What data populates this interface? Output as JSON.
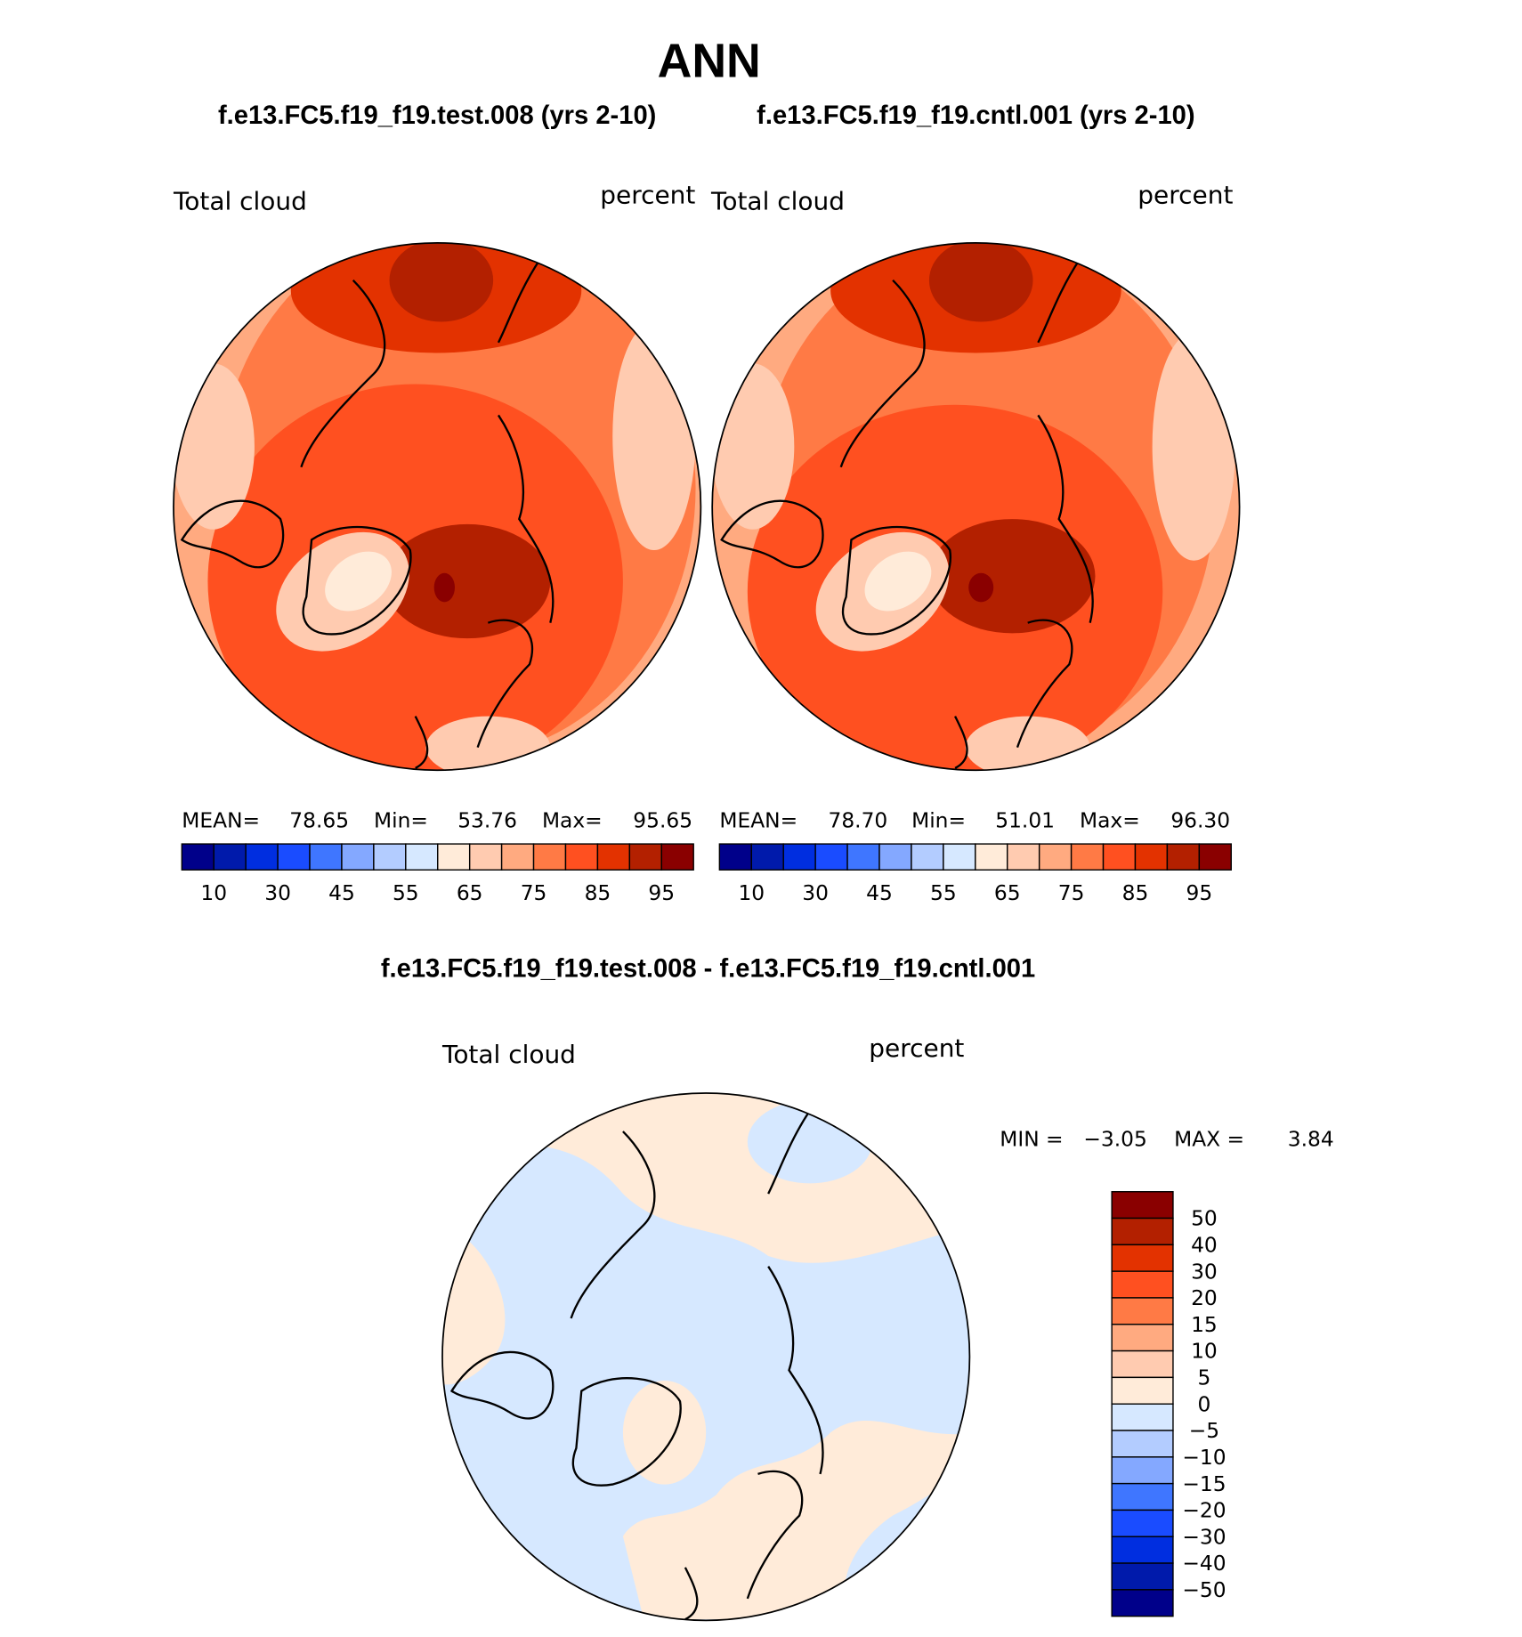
{
  "title": "ANN",
  "panels": [
    {
      "case_title": "f.e13.FC5.f19_f19.test.008 (yrs 2-10)",
      "left_label": "Total cloud",
      "right_label": "percent",
      "stats": {
        "mean_label": "MEAN=",
        "mean": "78.65",
        "min_label": "Min=",
        "min": "53.76",
        "max_label": "Max=",
        "max": "95.65"
      }
    },
    {
      "case_title": "f.e13.FC5.f19_f19.cntl.001 (yrs 2-10)",
      "left_label": "Total cloud",
      "right_label": "percent",
      "stats": {
        "mean_label": "MEAN=",
        "mean": "78.70",
        "min_label": "Min=",
        "min": "51.01",
        "max_label": "Max=",
        "max": "96.30"
      }
    }
  ],
  "diff": {
    "title": "f.e13.FC5.f19_f19.test.008 - f.e13.FC5.f19_f19.cntl.001",
    "left_label": "Total cloud",
    "right_label": "percent",
    "min_label": "MIN =",
    "min": "−3.05",
    "max_label": "MAX =",
    "max": "3.84"
  },
  "chart_data": [
    {
      "type": "heatmap",
      "projection": "north-polar-stereographic",
      "title": "f.e13.FC5.f19_f19.test.008 (yrs 2-10)",
      "variable": "Total cloud",
      "units": "percent",
      "mean": 78.65,
      "min": 53.76,
      "max": 95.65,
      "colorbar_ticks": [
        "10",
        "30",
        "45",
        "55",
        "65",
        "75",
        "85",
        "95"
      ]
    },
    {
      "type": "heatmap",
      "projection": "north-polar-stereographic",
      "title": "f.e13.FC5.f19_f19.cntl.001 (yrs 2-10)",
      "variable": "Total cloud",
      "units": "percent",
      "mean": 78.7,
      "min": 51.01,
      "max": 96.3,
      "colorbar_ticks": [
        "10",
        "30",
        "45",
        "55",
        "65",
        "75",
        "85",
        "95"
      ]
    },
    {
      "type": "heatmap",
      "projection": "north-polar-stereographic",
      "title": "f.e13.FC5.f19_f19.test.008 - f.e13.FC5.f19_f19.cntl.001",
      "variable": "Total cloud",
      "units": "percent",
      "min": -3.05,
      "max": 3.84,
      "colorbar_ticks": [
        "50",
        "40",
        "30",
        "20",
        "15",
        "10",
        "5",
        "0",
        "−5",
        "−10",
        "−15",
        "−20",
        "−30",
        "−40",
        "−50"
      ]
    }
  ],
  "colors": [
    "#00008a",
    "#001aab",
    "#002ee0",
    "#1a4cff",
    "#3f76ff",
    "#84a8ff",
    "#b3ccff",
    "#d6e8ff",
    "#ffebd9",
    "#ffcbb0",
    "#ffaa80",
    "#ff7a45",
    "#ff5020",
    "#e33200",
    "#b32000",
    "#8a0000"
  ]
}
